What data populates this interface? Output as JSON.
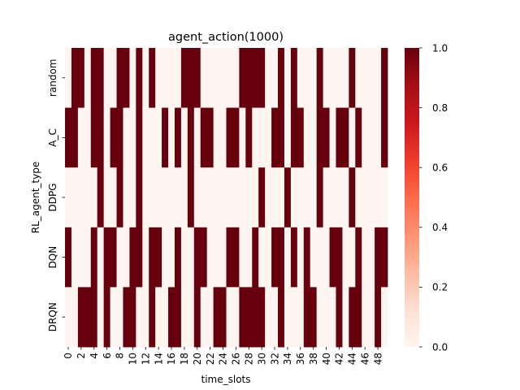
{
  "chart_data": {
    "type": "heatmap",
    "title": "agent_action(1000)",
    "xlabel": "time_slots",
    "ylabel": "RL_agent_type",
    "rows": [
      "random",
      "A_C",
      "DDPG",
      "DQN",
      "DRQN"
    ],
    "x": [
      0,
      1,
      2,
      3,
      4,
      5,
      6,
      7,
      8,
      9,
      10,
      11,
      12,
      13,
      14,
      15,
      16,
      17,
      18,
      19,
      20,
      21,
      22,
      23,
      24,
      25,
      26,
      27,
      28,
      29,
      30,
      31,
      32,
      33,
      34,
      35,
      36,
      37,
      38,
      39,
      40,
      41,
      42,
      43,
      44,
      45,
      46,
      47,
      48,
      49
    ],
    "x_tick_labels": [
      "0",
      "2",
      "4",
      "6",
      "8",
      "10",
      "12",
      "14",
      "16",
      "18",
      "20",
      "22",
      "24",
      "26",
      "28",
      "30",
      "32",
      "34",
      "36",
      "38",
      "40",
      "42",
      "44",
      "46",
      "48"
    ],
    "values": [
      [
        0,
        1,
        1,
        0,
        1,
        1,
        0,
        0,
        1,
        1,
        0,
        1,
        0,
        1,
        0,
        0,
        0,
        0,
        1,
        1,
        1,
        0,
        0,
        0,
        0,
        0,
        0,
        1,
        1,
        1,
        1,
        0,
        0,
        1,
        0,
        1,
        0,
        0,
        0,
        1,
        0,
        0,
        0,
        0,
        1,
        0,
        0,
        0,
        0,
        1
      ],
      [
        1,
        1,
        0,
        0,
        1,
        1,
        0,
        1,
        1,
        0,
        0,
        1,
        0,
        0,
        0,
        1,
        0,
        1,
        0,
        1,
        0,
        1,
        1,
        0,
        0,
        1,
        1,
        0,
        1,
        0,
        0,
        0,
        1,
        1,
        0,
        1,
        1,
        0,
        0,
        1,
        1,
        0,
        1,
        1,
        0,
        1,
        0,
        0,
        0,
        1
      ],
      [
        0,
        0,
        0,
        0,
        0,
        1,
        0,
        0,
        1,
        0,
        0,
        1,
        0,
        0,
        0,
        0,
        0,
        0,
        0,
        1,
        0,
        0,
        0,
        0,
        0,
        0,
        0,
        0,
        0,
        0,
        1,
        0,
        0,
        0,
        1,
        0,
        0,
        0,
        0,
        1,
        0,
        0,
        0,
        0,
        1,
        0,
        0,
        0,
        0,
        0
      ],
      [
        1,
        0,
        0,
        0,
        1,
        0,
        1,
        1,
        0,
        0,
        1,
        1,
        0,
        1,
        1,
        0,
        0,
        1,
        0,
        0,
        1,
        1,
        0,
        0,
        0,
        1,
        1,
        0,
        0,
        1,
        0,
        0,
        1,
        1,
        0,
        1,
        0,
        1,
        0,
        0,
        0,
        1,
        1,
        0,
        0,
        1,
        0,
        0,
        1,
        1
      ],
      [
        0,
        0,
        1,
        1,
        1,
        0,
        1,
        0,
        0,
        1,
        1,
        0,
        0,
        1,
        0,
        0,
        1,
        1,
        0,
        0,
        1,
        0,
        0,
        1,
        1,
        0,
        0,
        1,
        1,
        1,
        1,
        0,
        0,
        1,
        0,
        0,
        0,
        1,
        1,
        0,
        0,
        0,
        1,
        0,
        1,
        1,
        0,
        0,
        1,
        0
      ]
    ],
    "colorbar": {
      "min": 0.0,
      "max": 1.0,
      "tick_labels": [
        "0.0",
        "0.2",
        "0.4",
        "0.6",
        "0.8",
        "1.0"
      ]
    },
    "colors": {
      "low": "#fff5f0",
      "high": "#67000d",
      "cmap": "Reds"
    },
    "grid": false
  }
}
